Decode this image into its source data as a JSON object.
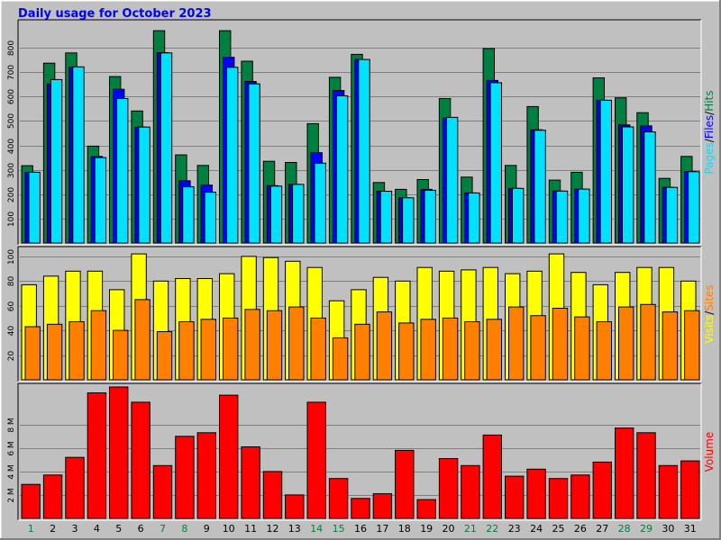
{
  "colors": {
    "background": "#c0c0c0",
    "title": "#0000ff",
    "hits": "#008040",
    "files": "#0000ff",
    "pages": "#00e0ff",
    "visits": "#ffff00",
    "sites": "#ff8000",
    "volume": "#ff0000",
    "weekend_label": "#008040"
  },
  "chart_data": [
    {
      "type": "bar",
      "title": "Daily usage for October 2023",
      "ylabel_parts": [
        "Pages",
        "/",
        "Files",
        "/",
        "Hits"
      ],
      "ylim": [
        0,
        900
      ],
      "ticks": [
        100,
        200,
        300,
        400,
        500,
        600,
        700,
        800
      ],
      "tick_labels": [
        "100",
        "200",
        "300",
        "400",
        "500",
        "600",
        "700",
        "800"
      ],
      "categories": [
        "1",
        "2",
        "3",
        "4",
        "5",
        "6",
        "7",
        "8",
        "9",
        "10",
        "11",
        "12",
        "13",
        "14",
        "15",
        "16",
        "17",
        "18",
        "19",
        "20",
        "21",
        "22",
        "23",
        "24",
        "25",
        "26",
        "27",
        "28",
        "29",
        "30",
        "31"
      ],
      "weekend_days": [
        "1",
        "7",
        "8",
        "14",
        "15",
        "21",
        "22",
        "28",
        "29"
      ],
      "series": [
        {
          "name": "Hits",
          "values": [
            317,
            737,
            779,
            397,
            682,
            541,
            870,
            361,
            318,
            870,
            745,
            335,
            330,
            489,
            679,
            773,
            248,
            220,
            260,
            592,
            270,
            797,
            318,
            559,
            258,
            290,
            677,
            595,
            534,
            265,
            355
          ]
        },
        {
          "name": "Files",
          "values": [
            290,
            652,
            720,
            355,
            630,
            475,
            780,
            255,
            237,
            761,
            662,
            235,
            240,
            370,
            625,
            752,
            212,
            185,
            220,
            512,
            205,
            666,
            224,
            464,
            213,
            221,
            585,
            484,
            480,
            228,
            293
          ]
        },
        {
          "name": "Pages",
          "values": [
            290,
            670,
            722,
            350,
            592,
            475,
            779,
            230,
            208,
            720,
            652,
            233,
            240,
            327,
            603,
            752,
            212,
            185,
            216,
            515,
            205,
            657,
            224,
            462,
            213,
            221,
            585,
            476,
            455,
            228,
            292
          ]
        }
      ]
    },
    {
      "type": "bar",
      "ylabel_parts": [
        "Visits",
        "/",
        "Sites"
      ],
      "ylim": [
        0,
        105
      ],
      "ticks": [
        20,
        40,
        60,
        80,
        100
      ],
      "tick_labels": [
        "20",
        "40",
        "60",
        "80",
        "100"
      ],
      "series": [
        {
          "name": "Visits",
          "values": [
            77,
            84,
            88,
            88,
            73,
            102,
            80,
            82,
            82,
            86,
            100,
            99,
            96,
            91,
            64,
            73,
            83,
            80,
            91,
            88,
            89,
            91,
            86,
            88,
            102,
            87,
            77,
            87,
            91,
            91,
            80
          ]
        },
        {
          "name": "Sites",
          "values": [
            43,
            45,
            47,
            56,
            40,
            65,
            39,
            47,
            49,
            50,
            57,
            56,
            59,
            50,
            34,
            45,
            55,
            46,
            49,
            50,
            47,
            49,
            59,
            52,
            58,
            51,
            47,
            59,
            61,
            55,
            56
          ]
        }
      ]
    },
    {
      "type": "bar",
      "ylabel_parts": [
        "Volume"
      ],
      "ylim": [
        0,
        11.2
      ],
      "ticks": [
        2,
        4,
        6,
        8
      ],
      "tick_labels": [
        "2 M",
        "4 M",
        "6 M",
        "8 M"
      ],
      "series": [
        {
          "name": "Volume",
          "values": [
            2.9,
            3.7,
            5.2,
            10.7,
            11.2,
            9.9,
            4.5,
            7.0,
            7.3,
            10.5,
            6.1,
            4.0,
            2.0,
            9.9,
            3.4,
            1.7,
            2.1,
            5.8,
            1.6,
            5.1,
            4.5,
            7.1,
            3.6,
            4.2,
            3.4,
            3.7,
            4.8,
            7.7,
            7.3,
            4.5,
            4.9
          ]
        }
      ]
    }
  ]
}
